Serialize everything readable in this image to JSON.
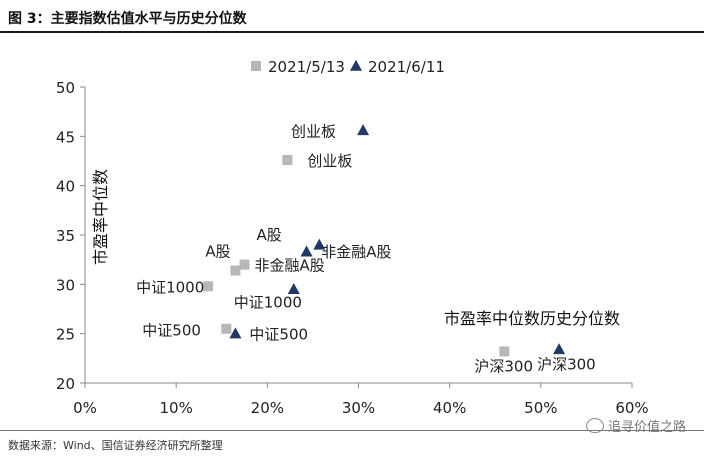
{
  "figure": {
    "title": "图 3：主要指数估值水平与历史分位数",
    "source": "数据来源：Wind、国信证券经济研究所整理",
    "watermark": "追寻价值之路",
    "watermark_icon": "wechat-icon"
  },
  "chart_data": {
    "type": "scatter",
    "title": "",
    "ylabel": "市盈率中位数",
    "xlabel": "市盈率中位数历史分位数",
    "xlim": [
      0,
      0.6
    ],
    "ylim": [
      20,
      50
    ],
    "x_ticks": [
      "0%",
      "10%",
      "20%",
      "30%",
      "40%",
      "50%",
      "60%"
    ],
    "y_ticks": [
      "20",
      "25",
      "30",
      "35",
      "40",
      "45",
      "50"
    ],
    "grid": false,
    "legend_position": "top",
    "series": [
      {
        "name": "2021/5/13",
        "marker": "square",
        "color": "#b7b7b7",
        "points": [
          {
            "label": "创业板",
            "x": 0.222,
            "y": 42.6
          },
          {
            "label": "非金融A股",
            "x": 0.175,
            "y": 32.0
          },
          {
            "label": "A股",
            "x": 0.165,
            "y": 31.4
          },
          {
            "label": "中证1000",
            "x": 0.135,
            "y": 29.8
          },
          {
            "label": "中证500",
            "x": 0.155,
            "y": 25.5
          },
          {
            "label": "沪深300",
            "x": 0.46,
            "y": 23.2
          }
        ]
      },
      {
        "name": "2021/6/11",
        "marker": "triangle",
        "color": "#1f3864",
        "points": [
          {
            "label": "创业板",
            "x": 0.305,
            "y": 45.6
          },
          {
            "label": "非金融A股",
            "x": 0.257,
            "y": 34.0
          },
          {
            "label": "A股",
            "x": 0.243,
            "y": 33.3
          },
          {
            "label": "中证1000",
            "x": 0.229,
            "y": 29.5
          },
          {
            "label": "中证500",
            "x": 0.165,
            "y": 25.0
          },
          {
            "label": "沪深300",
            "x": 0.52,
            "y": 23.4
          }
        ]
      }
    ]
  }
}
